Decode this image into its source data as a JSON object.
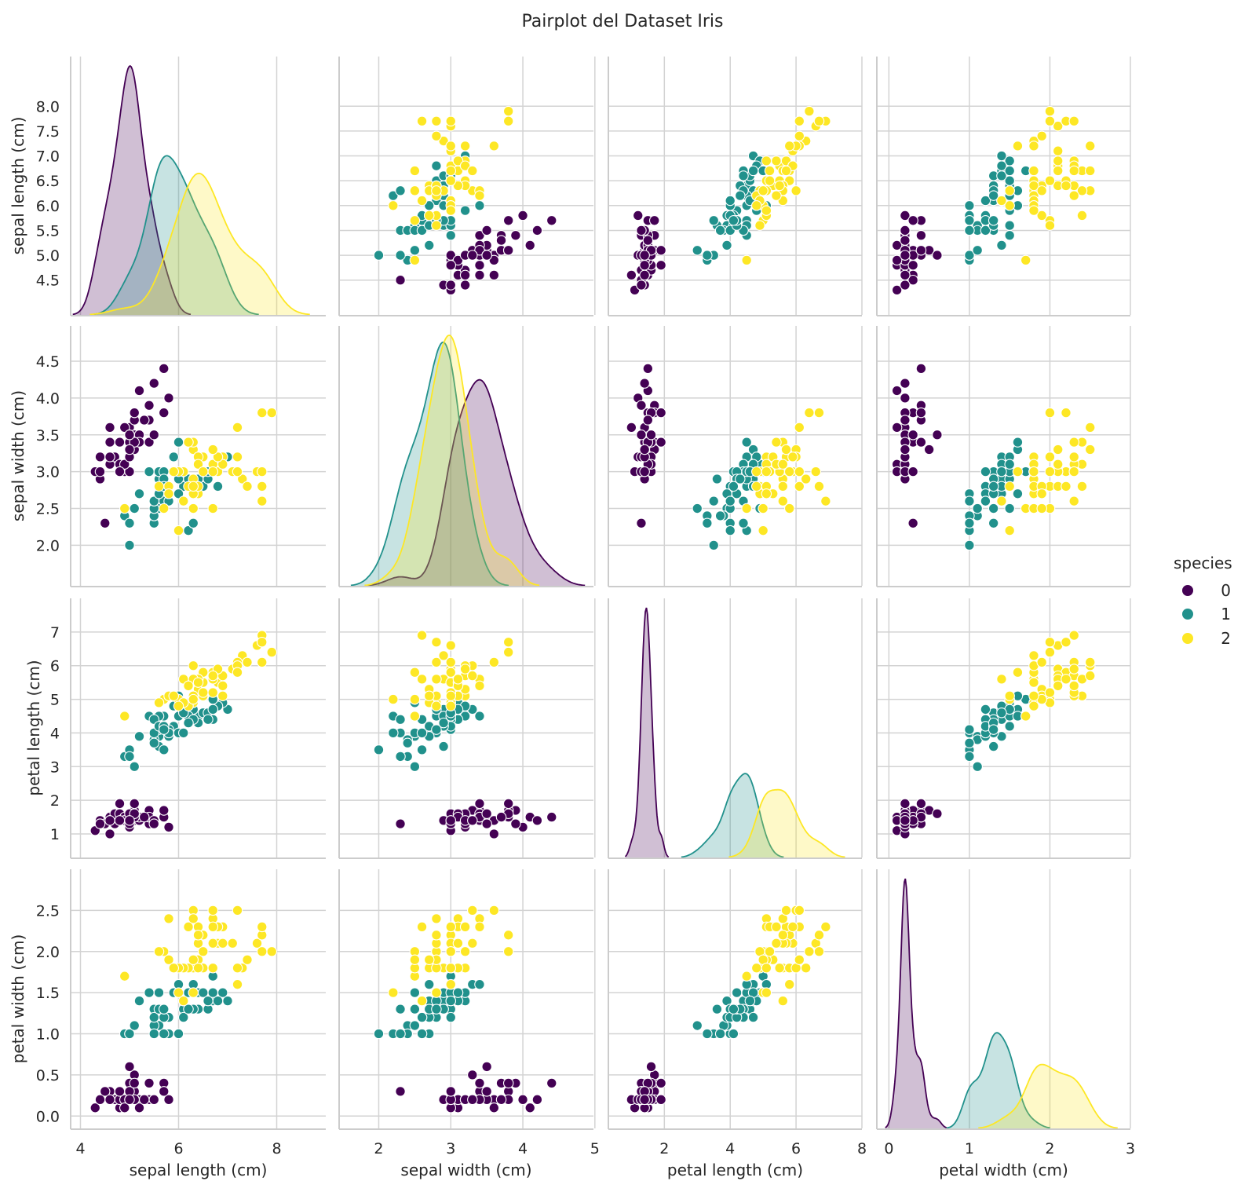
{
  "chart_data": {
    "type": "scatter",
    "title": "Pairplot del Dataset Iris",
    "variables": [
      "sepal length (cm)",
      "sepal width (cm)",
      "petal length (cm)",
      "petal width (cm)"
    ],
    "diagonal": "kde",
    "offdiagonal": "scatter",
    "hue": "species",
    "legend": {
      "title": "species",
      "placement": "right",
      "entries": [
        {
          "label": "0",
          "color": "#440154"
        },
        {
          "label": "1",
          "color": "#21918c"
        },
        {
          "label": "2",
          "color": "#fde725"
        }
      ]
    },
    "axes": [
      {
        "name": "sepal length (cm)",
        "lim": [
          3.8,
          9.0
        ],
        "row_ticks": [
          "4.5",
          "5.0",
          "5.5",
          "6.0",
          "6.5",
          "7.0",
          "7.5",
          "8.0"
        ],
        "col_ticks": [
          "4",
          "6",
          "8"
        ]
      },
      {
        "name": "sepal width (cm)",
        "lim": [
          1.45,
          4.98
        ],
        "row_ticks": [
          "2.0",
          "2.5",
          "3.0",
          "3.5",
          "4.0",
          "4.5"
        ],
        "col_ticks": [
          "2",
          "3",
          "4",
          "5"
        ]
      },
      {
        "name": "petal length (cm)",
        "lim": [
          0.3,
          8.0
        ],
        "row_ticks": [
          "1",
          "2",
          "3",
          "4",
          "5",
          "6",
          "7"
        ],
        "col_ticks": [
          "2",
          "4",
          "6",
          "8"
        ]
      },
      {
        "name": "petal width (cm)",
        "lim": [
          -0.15,
          3.0
        ],
        "row_ticks": [
          "0.0",
          "0.5",
          "1.0",
          "1.5",
          "2.0",
          "2.5"
        ],
        "col_ticks": [
          "0",
          "1",
          "2",
          "3"
        ]
      }
    ],
    "grid": true,
    "series": [
      {
        "name": "0",
        "color": "#440154",
        "points": [
          [
            5.1,
            3.5,
            1.4,
            0.2
          ],
          [
            4.9,
            3.0,
            1.4,
            0.2
          ],
          [
            4.7,
            3.2,
            1.3,
            0.2
          ],
          [
            4.6,
            3.1,
            1.5,
            0.2
          ],
          [
            5.0,
            3.6,
            1.4,
            0.2
          ],
          [
            5.4,
            3.9,
            1.7,
            0.4
          ],
          [
            4.6,
            3.4,
            1.4,
            0.3
          ],
          [
            5.0,
            3.4,
            1.5,
            0.2
          ],
          [
            4.4,
            2.9,
            1.4,
            0.2
          ],
          [
            4.9,
            3.1,
            1.5,
            0.1
          ],
          [
            5.4,
            3.7,
            1.5,
            0.2
          ],
          [
            4.8,
            3.4,
            1.6,
            0.2
          ],
          [
            4.8,
            3.0,
            1.4,
            0.1
          ],
          [
            4.3,
            3.0,
            1.1,
            0.1
          ],
          [
            5.8,
            4.0,
            1.2,
            0.2
          ],
          [
            5.7,
            4.4,
            1.5,
            0.4
          ],
          [
            5.4,
            3.9,
            1.3,
            0.4
          ],
          [
            5.1,
            3.5,
            1.4,
            0.3
          ],
          [
            5.7,
            3.8,
            1.7,
            0.3
          ],
          [
            5.1,
            3.8,
            1.5,
            0.3
          ],
          [
            5.4,
            3.4,
            1.7,
            0.2
          ],
          [
            5.1,
            3.7,
            1.5,
            0.4
          ],
          [
            4.6,
            3.6,
            1.0,
            0.2
          ],
          [
            5.1,
            3.3,
            1.7,
            0.5
          ],
          [
            4.8,
            3.4,
            1.9,
            0.2
          ],
          [
            5.0,
            3.0,
            1.6,
            0.2
          ],
          [
            5.0,
            3.4,
            1.6,
            0.4
          ],
          [
            5.2,
            3.5,
            1.5,
            0.2
          ],
          [
            5.2,
            3.4,
            1.4,
            0.2
          ],
          [
            4.7,
            3.2,
            1.6,
            0.2
          ],
          [
            4.8,
            3.1,
            1.6,
            0.2
          ],
          [
            5.4,
            3.4,
            1.5,
            0.4
          ],
          [
            5.2,
            4.1,
            1.5,
            0.1
          ],
          [
            5.5,
            4.2,
            1.4,
            0.2
          ],
          [
            4.9,
            3.1,
            1.5,
            0.2
          ],
          [
            5.0,
            3.2,
            1.2,
            0.2
          ],
          [
            5.5,
            3.5,
            1.3,
            0.2
          ],
          [
            4.9,
            3.6,
            1.4,
            0.1
          ],
          [
            4.4,
            3.0,
            1.3,
            0.2
          ],
          [
            5.1,
            3.4,
            1.5,
            0.2
          ],
          [
            5.0,
            3.5,
            1.3,
            0.3
          ],
          [
            4.5,
            2.3,
            1.3,
            0.3
          ],
          [
            4.4,
            3.2,
            1.3,
            0.2
          ],
          [
            5.0,
            3.5,
            1.6,
            0.6
          ],
          [
            5.1,
            3.8,
            1.9,
            0.4
          ],
          [
            4.8,
            3.0,
            1.4,
            0.3
          ],
          [
            5.1,
            3.8,
            1.6,
            0.2
          ],
          [
            4.6,
            3.2,
            1.4,
            0.2
          ],
          [
            5.3,
            3.7,
            1.5,
            0.2
          ],
          [
            5.0,
            3.3,
            1.4,
            0.2
          ]
        ]
      },
      {
        "name": "1",
        "color": "#21918c",
        "points": [
          [
            7.0,
            3.2,
            4.7,
            1.4
          ],
          [
            6.4,
            3.2,
            4.5,
            1.5
          ],
          [
            6.9,
            3.1,
            4.9,
            1.5
          ],
          [
            5.5,
            2.3,
            4.0,
            1.3
          ],
          [
            6.5,
            2.8,
            4.6,
            1.5
          ],
          [
            5.7,
            2.8,
            4.5,
            1.3
          ],
          [
            6.3,
            3.3,
            4.7,
            1.6
          ],
          [
            4.9,
            2.4,
            3.3,
            1.0
          ],
          [
            6.6,
            2.9,
            4.6,
            1.3
          ],
          [
            5.2,
            2.7,
            3.9,
            1.4
          ],
          [
            5.0,
            2.0,
            3.5,
            1.0
          ],
          [
            5.9,
            3.0,
            4.2,
            1.5
          ],
          [
            6.0,
            2.2,
            4.0,
            1.0
          ],
          [
            6.1,
            2.9,
            4.7,
            1.4
          ],
          [
            5.6,
            2.9,
            3.6,
            1.3
          ],
          [
            6.7,
            3.1,
            4.4,
            1.4
          ],
          [
            5.6,
            3.0,
            4.5,
            1.5
          ],
          [
            5.8,
            2.7,
            4.1,
            1.0
          ],
          [
            6.2,
            2.2,
            4.5,
            1.5
          ],
          [
            5.6,
            2.5,
            3.9,
            1.1
          ],
          [
            5.9,
            3.2,
            4.8,
            1.8
          ],
          [
            6.1,
            2.8,
            4.0,
            1.3
          ],
          [
            6.3,
            2.5,
            4.9,
            1.5
          ],
          [
            6.1,
            2.8,
            4.7,
            1.2
          ],
          [
            6.4,
            2.9,
            4.3,
            1.3
          ],
          [
            6.6,
            3.0,
            4.4,
            1.4
          ],
          [
            6.8,
            2.8,
            4.8,
            1.4
          ],
          [
            6.7,
            3.0,
            5.0,
            1.7
          ],
          [
            6.0,
            2.9,
            4.5,
            1.5
          ],
          [
            5.7,
            2.6,
            3.5,
            1.0
          ],
          [
            5.5,
            2.4,
            3.8,
            1.1
          ],
          [
            5.5,
            2.4,
            3.7,
            1.0
          ],
          [
            5.8,
            2.7,
            3.9,
            1.2
          ],
          [
            6.0,
            2.7,
            5.1,
            1.6
          ],
          [
            5.4,
            3.0,
            4.5,
            1.5
          ],
          [
            6.0,
            3.4,
            4.5,
            1.6
          ],
          [
            6.7,
            3.1,
            4.7,
            1.5
          ],
          [
            6.3,
            2.3,
            4.4,
            1.3
          ],
          [
            5.6,
            3.0,
            4.1,
            1.3
          ],
          [
            5.5,
            2.5,
            4.0,
            1.3
          ],
          [
            5.5,
            2.6,
            4.4,
            1.2
          ],
          [
            6.1,
            3.0,
            4.6,
            1.4
          ],
          [
            5.8,
            2.6,
            4.0,
            1.2
          ],
          [
            5.0,
            2.3,
            3.3,
            1.0
          ],
          [
            5.6,
            2.7,
            4.2,
            1.3
          ],
          [
            5.7,
            3.0,
            4.2,
            1.2
          ],
          [
            5.7,
            2.9,
            4.2,
            1.3
          ],
          [
            6.2,
            2.9,
            4.3,
            1.3
          ],
          [
            5.1,
            2.5,
            3.0,
            1.1
          ],
          [
            5.7,
            2.8,
            4.1,
            1.3
          ]
        ]
      },
      {
        "name": "2",
        "color": "#fde725",
        "points": [
          [
            6.3,
            3.3,
            6.0,
            2.5
          ],
          [
            5.8,
            2.7,
            5.1,
            1.9
          ],
          [
            7.1,
            3.0,
            5.9,
            2.1
          ],
          [
            6.3,
            2.9,
            5.6,
            1.8
          ],
          [
            6.5,
            3.0,
            5.8,
            2.2
          ],
          [
            7.6,
            3.0,
            6.6,
            2.1
          ],
          [
            4.9,
            2.5,
            4.5,
            1.7
          ],
          [
            7.3,
            2.9,
            6.3,
            1.8
          ],
          [
            6.7,
            2.5,
            5.8,
            1.8
          ],
          [
            7.2,
            3.6,
            6.1,
            2.5
          ],
          [
            6.5,
            3.2,
            5.1,
            2.0
          ],
          [
            6.4,
            2.7,
            5.3,
            1.9
          ],
          [
            6.8,
            3.0,
            5.5,
            2.1
          ],
          [
            5.7,
            2.5,
            5.0,
            2.0
          ],
          [
            5.8,
            2.8,
            5.1,
            2.4
          ],
          [
            6.4,
            3.2,
            5.3,
            2.3
          ],
          [
            6.5,
            3.0,
            5.5,
            1.8
          ],
          [
            7.7,
            3.8,
            6.7,
            2.2
          ],
          [
            7.7,
            2.6,
            6.9,
            2.3
          ],
          [
            6.0,
            2.2,
            5.0,
            1.5
          ],
          [
            6.9,
            3.2,
            5.7,
            2.3
          ],
          [
            5.6,
            2.8,
            4.9,
            2.0
          ],
          [
            7.7,
            2.8,
            6.7,
            2.0
          ],
          [
            6.3,
            2.7,
            4.9,
            1.8
          ],
          [
            6.7,
            3.3,
            5.7,
            2.1
          ],
          [
            7.2,
            3.2,
            6.0,
            1.8
          ],
          [
            6.2,
            2.8,
            4.8,
            1.8
          ],
          [
            6.1,
            3.0,
            4.9,
            1.8
          ],
          [
            6.4,
            2.8,
            5.6,
            2.1
          ],
          [
            7.2,
            3.0,
            5.8,
            1.6
          ],
          [
            7.4,
            2.8,
            6.1,
            1.9
          ],
          [
            7.9,
            3.8,
            6.4,
            2.0
          ],
          [
            6.4,
            2.8,
            5.6,
            2.2
          ],
          [
            6.3,
            2.8,
            5.1,
            1.5
          ],
          [
            6.1,
            2.6,
            5.6,
            1.4
          ],
          [
            7.7,
            3.0,
            6.1,
            2.3
          ],
          [
            6.3,
            3.4,
            5.6,
            2.4
          ],
          [
            6.4,
            3.1,
            5.5,
            1.8
          ],
          [
            6.0,
            3.0,
            4.8,
            1.8
          ],
          [
            6.9,
            3.1,
            5.4,
            2.1
          ],
          [
            6.7,
            3.1,
            5.6,
            2.4
          ],
          [
            6.9,
            3.1,
            5.1,
            2.3
          ],
          [
            5.8,
            2.7,
            5.1,
            1.9
          ],
          [
            6.8,
            3.2,
            5.9,
            2.3
          ],
          [
            6.7,
            3.3,
            5.7,
            2.5
          ],
          [
            6.7,
            3.0,
            5.2,
            2.3
          ],
          [
            6.3,
            2.5,
            5.0,
            1.9
          ],
          [
            6.5,
            3.0,
            5.2,
            2.0
          ],
          [
            6.2,
            3.4,
            5.4,
            2.3
          ],
          [
            5.9,
            3.0,
            5.1,
            1.8
          ]
        ]
      }
    ]
  }
}
